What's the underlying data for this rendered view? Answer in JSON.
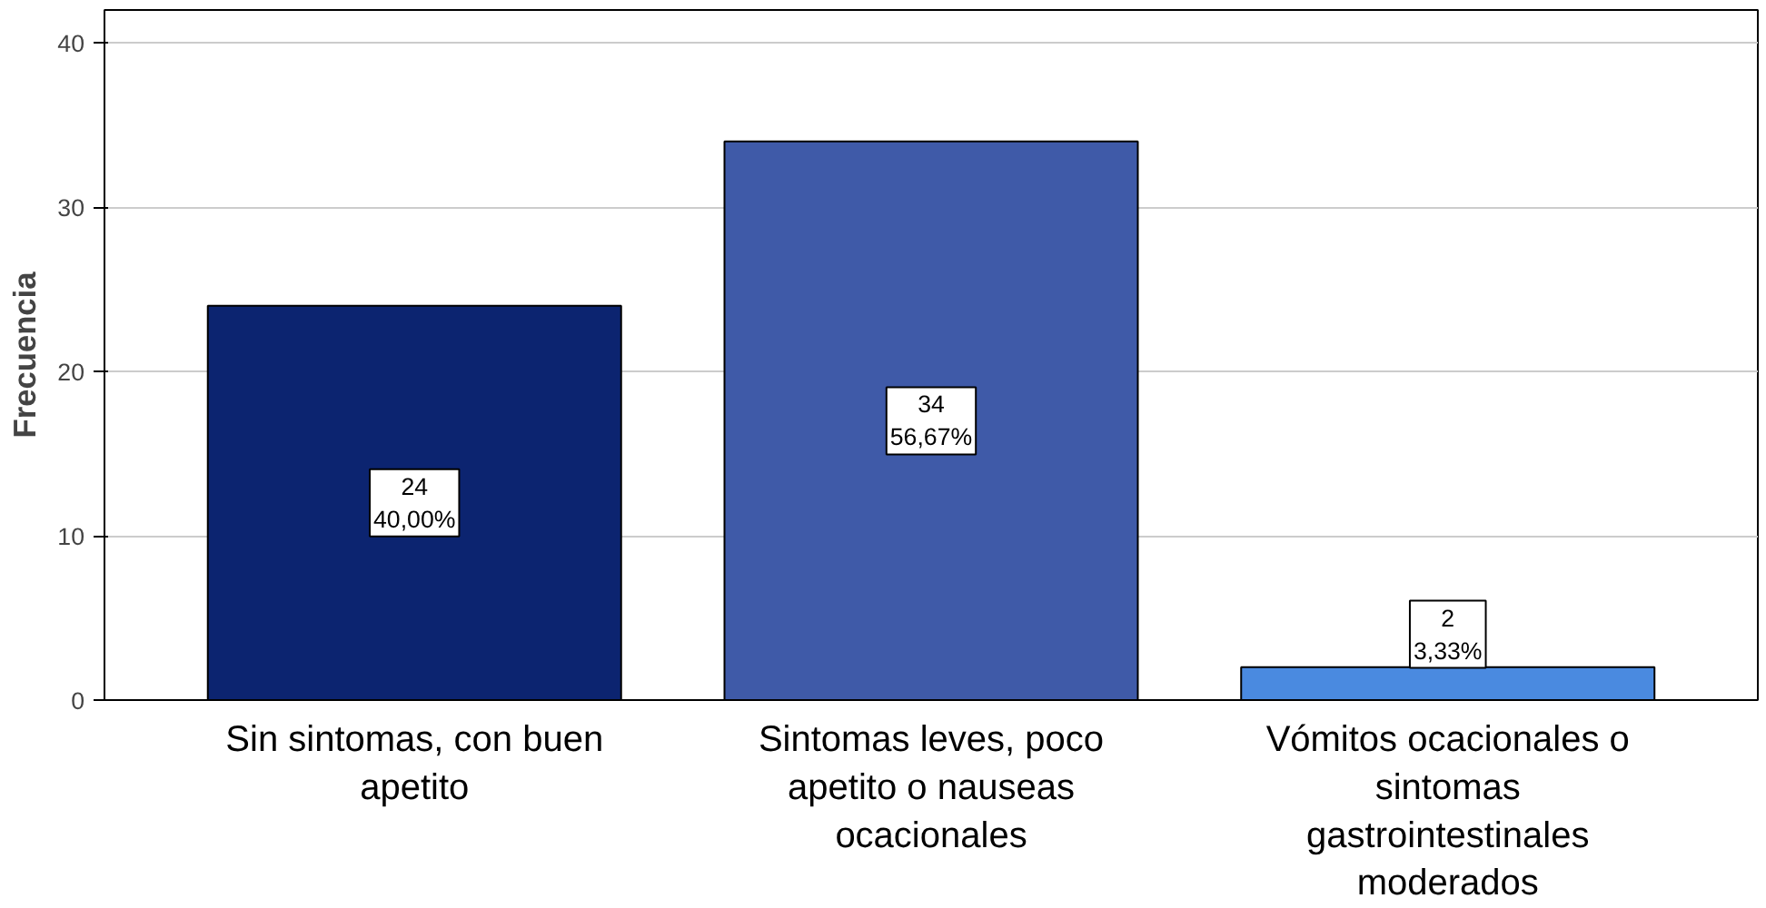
{
  "chart_data": {
    "type": "bar",
    "ylabel": "Frecuencia",
    "categories": [
      "Sin sintomas, con buen apetito",
      "Sintomas leves, poco apetito o nauseas ocacionales",
      "Vómitos ocacionales o sintomas gastrointestinales moderados"
    ],
    "values": [
      24,
      34,
      2
    ],
    "colors": [
      "#0c2470",
      "#3f5aa8",
      "#4a8ae0"
    ],
    "value_labels": [
      "24\n40,00%",
      "34\n56,67%",
      "2\n3,33%"
    ],
    "ylim": [
      0,
      42
    ],
    "yticks": [
      0,
      10,
      20,
      30,
      40
    ],
    "grid": "y"
  }
}
